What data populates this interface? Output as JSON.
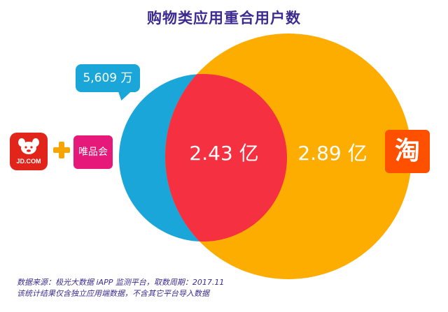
{
  "title": "购物类应用重合用户数",
  "jd_vip_users": "5,609 万",
  "overlap_users": "2.43 亿",
  "taobao_users": "2.89 亿",
  "logos": {
    "jd": "JD.COM",
    "vip": "唯品会",
    "taobao": "淘"
  },
  "footnotes": [
    "数据来源：极光大数据 iAPP 监测平台，取数周期：2017.11",
    "该统计结果仅含独立应用端数据，不含其它平台导入数据"
  ],
  "colors": {
    "jd_vip_circle": "#1aa6d9",
    "taobao_circle": "#fcad00",
    "overlap": "#f53040",
    "title": "#3d2b91"
  }
}
